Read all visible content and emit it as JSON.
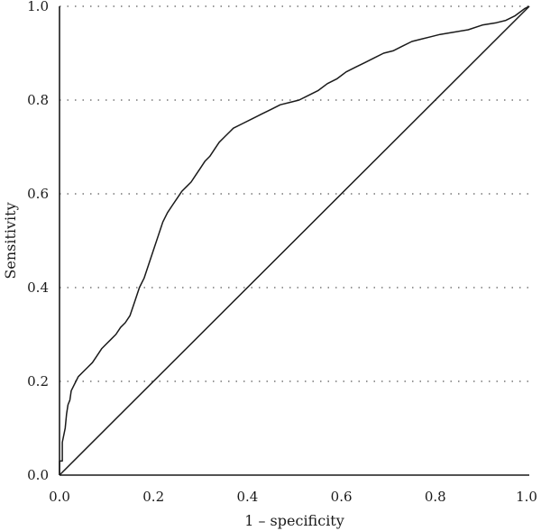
{
  "chart_data": {
    "type": "line",
    "xlabel": "1 – specificity",
    "ylabel": "Sensitivity",
    "xlim": [
      0,
      1
    ],
    "ylim": [
      0,
      1
    ],
    "x_ticks": [
      "0.0",
      "0.2",
      "0.4",
      "0.6",
      "0.8",
      "1.0"
    ],
    "y_ticks": [
      "0.0",
      "0.2",
      "0.4",
      "0.6",
      "0.8",
      "1.0"
    ],
    "grid": "horizontal dotted",
    "series": [
      {
        "kind": "roc-curve",
        "x": [
          0,
          0,
          0.006,
          0.006,
          0.012,
          0.015,
          0.018,
          0.022,
          0.025,
          0.03,
          0.035,
          0.04,
          0.05,
          0.06,
          0.07,
          0.08,
          0.09,
          0.1,
          0.11,
          0.12,
          0.13,
          0.14,
          0.15,
          0.16,
          0.17,
          0.18,
          0.19,
          0.2,
          0.21,
          0.22,
          0.23,
          0.24,
          0.25,
          0.26,
          0.27,
          0.28,
          0.29,
          0.3,
          0.31,
          0.32,
          0.33,
          0.34,
          0.35,
          0.36,
          0.37,
          0.39,
          0.41,
          0.43,
          0.45,
          0.47,
          0.49,
          0.51,
          0.53,
          0.55,
          0.57,
          0.59,
          0.61,
          0.63,
          0.65,
          0.67,
          0.69,
          0.71,
          0.73,
          0.75,
          0.77,
          0.79,
          0.81,
          0.84,
          0.87,
          0.9,
          0.93,
          0.95,
          0.97,
          0.99,
          1.0
        ],
        "y": [
          0,
          0.03,
          0.03,
          0.07,
          0.1,
          0.13,
          0.15,
          0.16,
          0.18,
          0.19,
          0.2,
          0.21,
          0.22,
          0.23,
          0.24,
          0.255,
          0.27,
          0.28,
          0.29,
          0.3,
          0.315,
          0.325,
          0.34,
          0.37,
          0.4,
          0.42,
          0.45,
          0.48,
          0.51,
          0.54,
          0.56,
          0.575,
          0.59,
          0.605,
          0.615,
          0.625,
          0.64,
          0.655,
          0.67,
          0.68,
          0.695,
          0.71,
          0.72,
          0.73,
          0.74,
          0.75,
          0.76,
          0.77,
          0.78,
          0.79,
          0.795,
          0.8,
          0.81,
          0.82,
          0.835,
          0.845,
          0.86,
          0.87,
          0.88,
          0.89,
          0.9,
          0.905,
          0.915,
          0.925,
          0.93,
          0.935,
          0.94,
          0.945,
          0.95,
          0.96,
          0.965,
          0.97,
          0.98,
          0.995,
          1.0
        ]
      },
      {
        "kind": "reference-diagonal",
        "x": [
          0,
          1
        ],
        "y": [
          0,
          1
        ]
      }
    ]
  }
}
